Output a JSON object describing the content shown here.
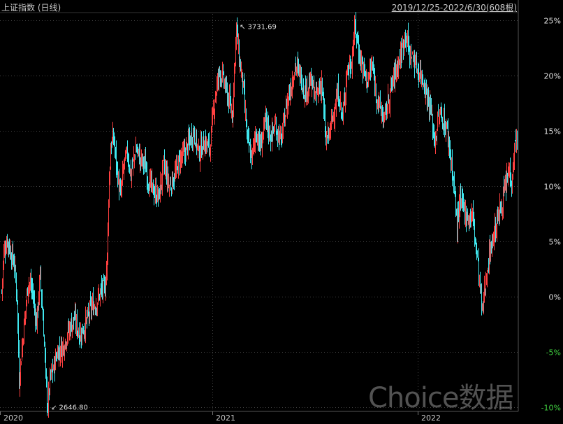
{
  "header": {
    "title": "上证指数 (日线)",
    "date_range": "2019/12/25-2022/6/30(608根)"
  },
  "watermark": "Choice数据",
  "colors": {
    "background": "#000000",
    "grid": "#444444",
    "up": "#ff4040",
    "down": "#40e8f0",
    "axis_positive": "#e0e0e0",
    "axis_negative": "#40d040"
  },
  "chart_data": {
    "type": "candlestick",
    "title": "上证指数 (日线)",
    "date_range": "2019/12/25-2022/6/30",
    "bar_count": 608,
    "x_ticks": [
      "2020",
      "2021",
      "2022"
    ],
    "y_ticks": [
      {
        "value": 25,
        "label": "25%"
      },
      {
        "value": 20,
        "label": "20%"
      },
      {
        "value": 15,
        "label": "15%"
      },
      {
        "value": 10,
        "label": "10%"
      },
      {
        "value": 5,
        "label": "5%"
      },
      {
        "value": 0,
        "label": "0%"
      },
      {
        "value": -5,
        "label": "-5%"
      },
      {
        "value": -10,
        "label": "-10%"
      }
    ],
    "ylim": [
      -10.4,
      25.6
    ],
    "y_unit": "% change",
    "annotations": [
      {
        "label": "3731.69",
        "type": "max",
        "value": 25.0
      },
      {
        "label": "2646.80",
        "type": "min",
        "value": -10.3
      }
    ],
    "series_close_pct": [
      [
        0,
        0.5
      ],
      [
        3,
        4.0
      ],
      [
        8,
        5.2
      ],
      [
        13,
        4.0
      ],
      [
        18,
        3.0
      ],
      [
        22,
        0.0
      ],
      [
        25,
        -7.5
      ],
      [
        30,
        -4.0
      ],
      [
        38,
        1.5
      ],
      [
        44,
        0.5
      ],
      [
        50,
        -2.5
      ],
      [
        55,
        2.0
      ],
      [
        60,
        -3.0
      ],
      [
        64,
        -8.5
      ],
      [
        66,
        -10.0
      ],
      [
        69,
        -7.5
      ],
      [
        74,
        -6.5
      ],
      [
        80,
        -5.0
      ],
      [
        88,
        -4.5
      ],
      [
        96,
        -3.0
      ],
      [
        104,
        -2.0
      ],
      [
        112,
        -3.5
      ],
      [
        120,
        -2.5
      ],
      [
        128,
        -1.0
      ],
      [
        136,
        -0.5
      ],
      [
        142,
        0.5
      ],
      [
        148,
        0.8
      ],
      [
        151,
        3.5
      ],
      [
        153,
        9.0
      ],
      [
        156,
        13.5
      ],
      [
        160,
        14.5
      ],
      [
        165,
        11.5
      ],
      [
        170,
        9.0
      ],
      [
        175,
        12.0
      ],
      [
        180,
        13.0
      ],
      [
        185,
        11.0
      ],
      [
        192,
        13.5
      ],
      [
        198,
        12.5
      ],
      [
        205,
        12.0
      ],
      [
        210,
        10.5
      ],
      [
        218,
        9.5
      ],
      [
        225,
        9.0
      ],
      [
        232,
        12.0
      ],
      [
        240,
        10.0
      ],
      [
        248,
        11.0
      ],
      [
        255,
        12.5
      ],
      [
        262,
        13.0
      ],
      [
        268,
        14.0
      ],
      [
        275,
        15.0
      ],
      [
        282,
        13.0
      ],
      [
        290,
        14.0
      ],
      [
        298,
        13.5
      ],
      [
        305,
        18.0
      ],
      [
        312,
        20.5
      ],
      [
        318,
        19.5
      ],
      [
        324,
        18.0
      ],
      [
        330,
        16.5
      ],
      [
        336,
        24.5
      ],
      [
        340,
        21.5
      ],
      [
        345,
        19.5
      ],
      [
        352,
        14.0
      ],
      [
        358,
        12.5
      ],
      [
        364,
        15.0
      ],
      [
        370,
        13.5
      ],
      [
        378,
        16.0
      ],
      [
        385,
        14.5
      ],
      [
        392,
        15.5
      ],
      [
        400,
        14.0
      ],
      [
        408,
        17.5
      ],
      [
        414,
        19.0
      ],
      [
        420,
        21.0
      ],
      [
        428,
        20.0
      ],
      [
        434,
        18.5
      ],
      [
        442,
        19.5
      ],
      [
        450,
        18.0
      ],
      [
        458,
        19.5
      ],
      [
        464,
        14.0
      ],
      [
        470,
        15.0
      ],
      [
        476,
        17.0
      ],
      [
        482,
        18.5
      ],
      [
        488,
        16.0
      ],
      [
        494,
        20.5
      ],
      [
        500,
        21.0
      ],
      [
        506,
        24.5
      ],
      [
        512,
        22.0
      ],
      [
        518,
        20.5
      ],
      [
        524,
        19.5
      ],
      [
        530,
        21.0
      ],
      [
        536,
        18.5
      ],
      [
        542,
        17.0
      ],
      [
        548,
        16.0
      ],
      [
        554,
        18.0
      ],
      [
        560,
        19.5
      ],
      [
        566,
        21.0
      ],
      [
        572,
        22.0
      ],
      [
        578,
        24.0
      ],
      [
        584,
        22.0
      ],
      [
        590,
        21.5
      ],
      [
        596,
        20.5
      ],
      [
        602,
        20.0
      ],
      [
        608,
        18.5
      ],
      [
        614,
        17.0
      ],
      [
        620,
        14.0
      ],
      [
        626,
        16.5
      ],
      [
        632,
        16.0
      ],
      [
        638,
        15.0
      ],
      [
        644,
        12.0
      ],
      [
        648,
        9.5
      ],
      [
        652,
        6.5
      ],
      [
        656,
        8.5
      ],
      [
        662,
        8.0
      ],
      [
        668,
        7.0
      ],
      [
        674,
        7.5
      ],
      [
        680,
        4.0
      ],
      [
        684,
        1.5
      ],
      [
        688,
        -1.5
      ],
      [
        692,
        1.0
      ],
      [
        696,
        3.0
      ],
      [
        700,
        4.5
      ],
      [
        706,
        6.0
      ],
      [
        712,
        7.5
      ],
      [
        718,
        9.0
      ],
      [
        722,
        10.0
      ],
      [
        726,
        11.5
      ],
      [
        730,
        10.5
      ],
      [
        734,
        13.5
      ],
      [
        738,
        14.5
      ]
    ]
  }
}
